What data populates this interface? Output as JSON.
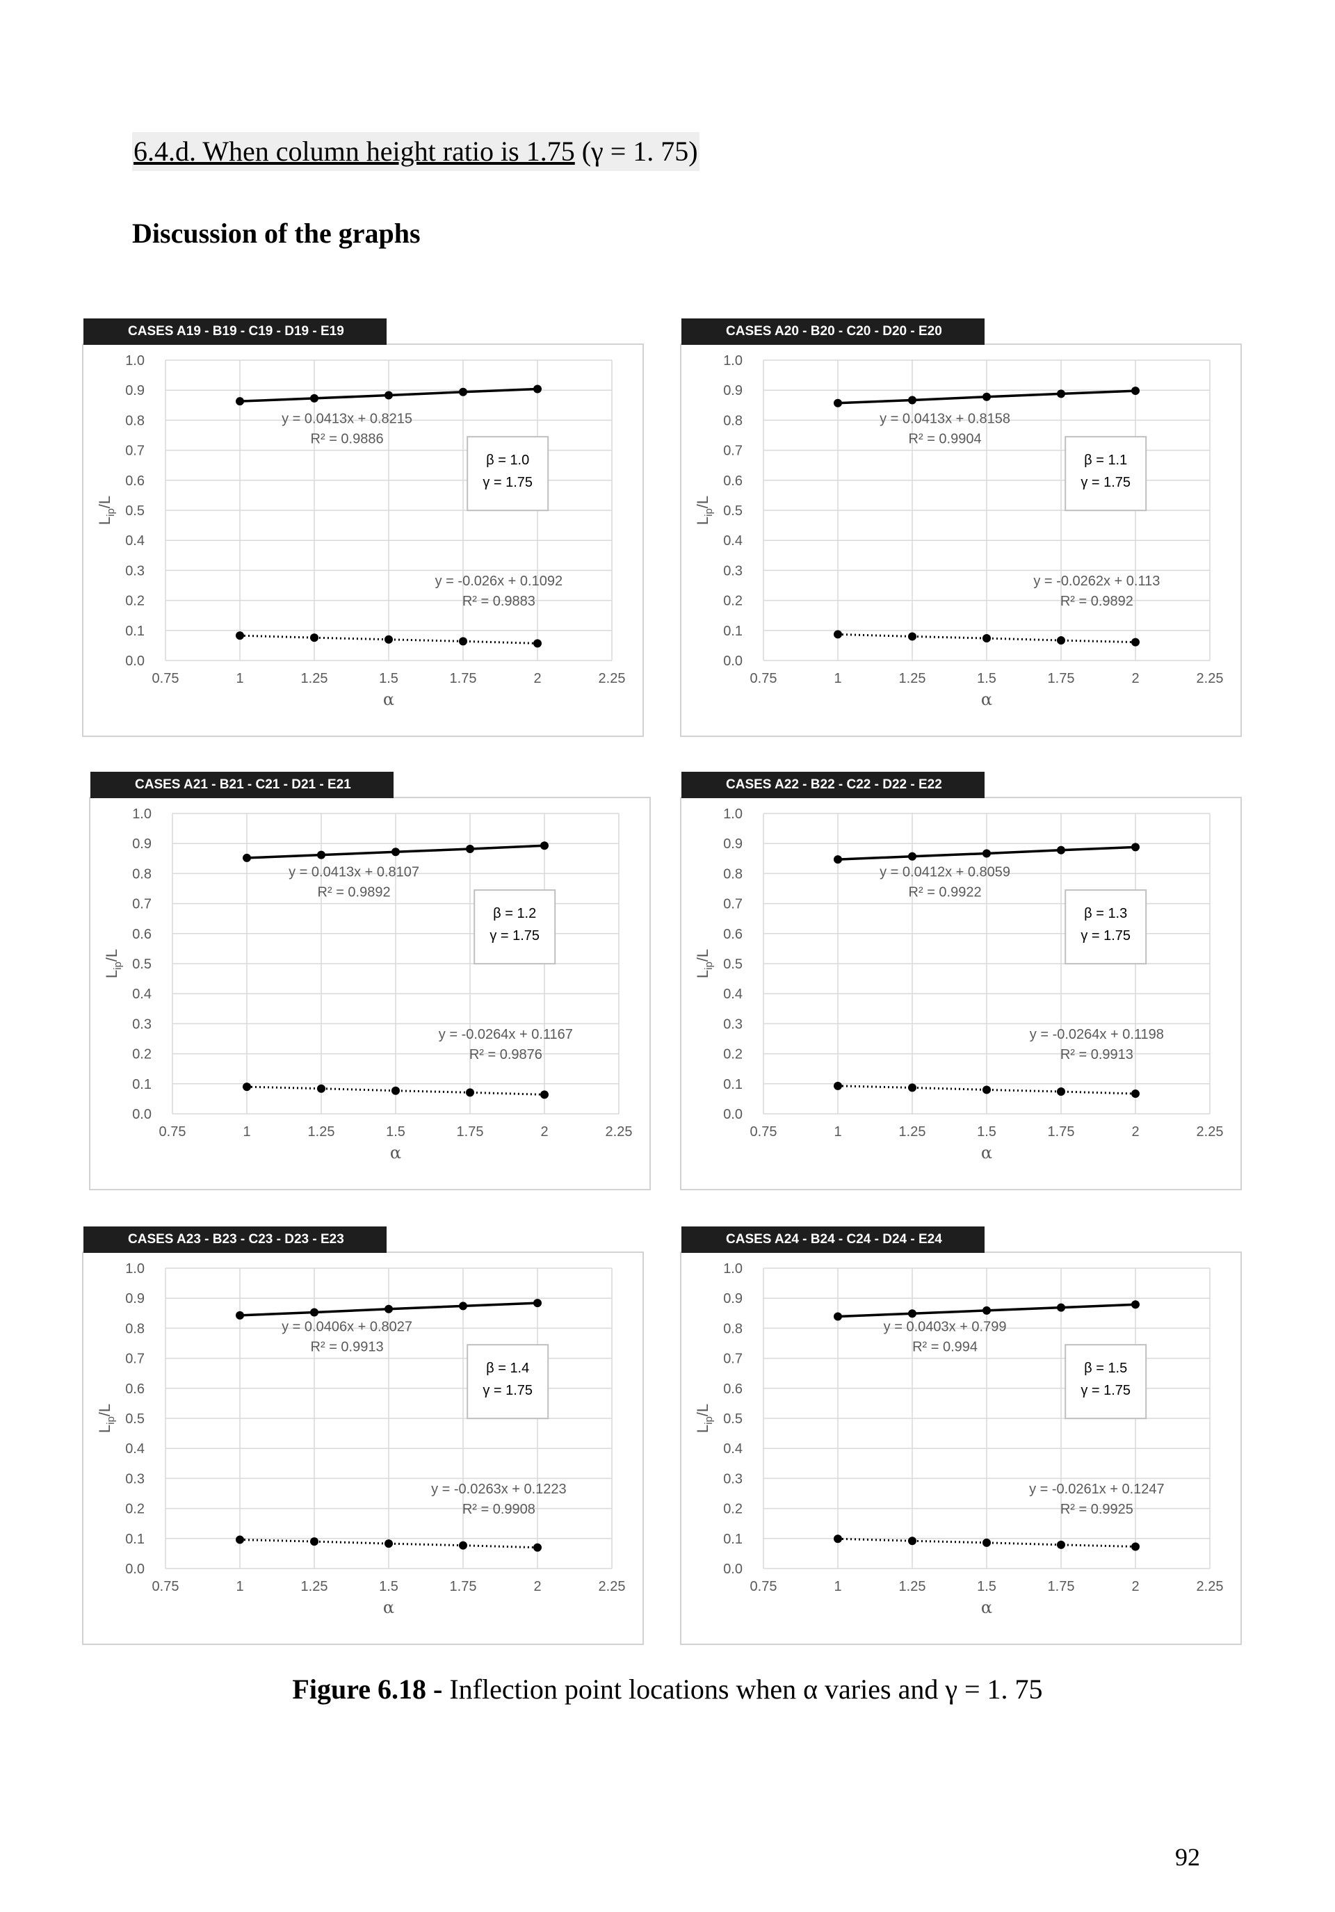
{
  "section_heading": {
    "underlined": "6.4.d. When column height ratio is 1.75",
    "math": "(γ  =  1. 75)"
  },
  "subheading": "Discussion of the graphs",
  "caption": {
    "bold": "Figure 6.18 -",
    "text": " Inflection point locations when α varies and γ  =  1. 75"
  },
  "page_number": "92",
  "colors": {
    "gridline": "#d9d9d9",
    "tick_label": "#595959",
    "series_line": "#000000",
    "header_band": "#1e1e1e"
  },
  "chart_data": [
    {
      "type": "line",
      "header": "CASES A19 - B19 - C19 - D19 - E19",
      "xlabel": "α",
      "ylabel": "Lip/L",
      "xlim": [
        0.75,
        2.25
      ],
      "ylim": [
        0,
        1.0
      ],
      "grid": true,
      "x_ticks": [
        "0.75",
        "1",
        "1.25",
        "1.5",
        "1.75",
        "2",
        "2.25"
      ],
      "y_ticks": [
        "0.0",
        "0.1",
        "0.2",
        "0.3",
        "0.4",
        "0.5",
        "0.6",
        "0.7",
        "0.8",
        "0.9",
        "1.0"
      ],
      "legend_box": [
        "β = 1.0",
        "γ = 1.75"
      ],
      "series": [
        {
          "x": [
            1,
            1.25,
            1.5,
            1.75,
            2
          ],
          "y": [
            0.863,
            0.873,
            0.883,
            0.894,
            0.904
          ],
          "style": "solid",
          "trend": [
            "y = 0.0413x + 0.8215",
            "R² = 0.9886"
          ]
        },
        {
          "x": [
            1,
            1.25,
            1.5,
            1.75,
            2
          ],
          "y": [
            0.083,
            0.076,
            0.07,
            0.064,
            0.057
          ],
          "style": "dotted",
          "trend": [
            "y = -0.026x + 0.1092",
            "R² = 0.9883"
          ]
        }
      ]
    },
    {
      "type": "line",
      "header": "CASES A20 - B20 - C20 - D20 - E20",
      "xlabel": "α",
      "ylabel": "Lip/L",
      "xlim": [
        0.75,
        2.25
      ],
      "ylim": [
        0,
        1.0
      ],
      "grid": true,
      "x_ticks": [
        "0.75",
        "1",
        "1.25",
        "1.5",
        "1.75",
        "2",
        "2.25"
      ],
      "y_ticks": [
        "0.0",
        "0.1",
        "0.2",
        "0.3",
        "0.4",
        "0.5",
        "0.6",
        "0.7",
        "0.8",
        "0.9",
        "1.0"
      ],
      "legend_box": [
        "β = 1.1",
        "γ = 1.75"
      ],
      "series": [
        {
          "x": [
            1,
            1.25,
            1.5,
            1.75,
            2
          ],
          "y": [
            0.857,
            0.867,
            0.878,
            0.888,
            0.898
          ],
          "style": "solid",
          "trend": [
            "y = 0.0413x + 0.8158",
            "R² = 0.9904"
          ]
        },
        {
          "x": [
            1,
            1.25,
            1.5,
            1.75,
            2
          ],
          "y": [
            0.087,
            0.08,
            0.074,
            0.067,
            0.061
          ],
          "style": "dotted",
          "trend": [
            "y = -0.0262x + 0.113",
            "R² = 0.9892"
          ]
        }
      ]
    },
    {
      "type": "line",
      "header": "CASES A21 - B21 - C21 - D21 - E21",
      "xlabel": "α",
      "ylabel": "Lip/L",
      "xlim": [
        0.75,
        2.25
      ],
      "ylim": [
        0,
        1.0
      ],
      "grid": true,
      "x_ticks": [
        "0.75",
        "1",
        "1.25",
        "1.5",
        "1.75",
        "2",
        "2.25"
      ],
      "y_ticks": [
        "0.0",
        "0.1",
        "0.2",
        "0.3",
        "0.4",
        "0.5",
        "0.6",
        "0.7",
        "0.8",
        "0.9",
        "1.0"
      ],
      "legend_box": [
        "β = 1.2",
        "γ = 1.75"
      ],
      "series": [
        {
          "x": [
            1,
            1.25,
            1.5,
            1.75,
            2
          ],
          "y": [
            0.852,
            0.862,
            0.872,
            0.882,
            0.893
          ],
          "style": "solid",
          "trend": [
            "y = 0.0413x + 0.8107",
            "R² = 0.9892"
          ]
        },
        {
          "x": [
            1,
            1.25,
            1.5,
            1.75,
            2
          ],
          "y": [
            0.09,
            0.084,
            0.077,
            0.071,
            0.064
          ],
          "style": "dotted",
          "trend": [
            "y = -0.0264x + 0.1167",
            "R² = 0.9876"
          ]
        }
      ]
    },
    {
      "type": "line",
      "header": "CASES A22 - B22 - C22 - D22 - E22",
      "xlabel": "α",
      "ylabel": "Lip/L",
      "xlim": [
        0.75,
        2.25
      ],
      "ylim": [
        0,
        1.0
      ],
      "grid": true,
      "x_ticks": [
        "0.75",
        "1",
        "1.25",
        "1.5",
        "1.75",
        "2",
        "2.25"
      ],
      "y_ticks": [
        "0.0",
        "0.1",
        "0.2",
        "0.3",
        "0.4",
        "0.5",
        "0.6",
        "0.7",
        "0.8",
        "0.9",
        "1.0"
      ],
      "legend_box": [
        "β = 1.3",
        "γ = 1.75"
      ],
      "series": [
        {
          "x": [
            1,
            1.25,
            1.5,
            1.75,
            2
          ],
          "y": [
            0.847,
            0.857,
            0.867,
            0.878,
            0.888
          ],
          "style": "solid",
          "trend": [
            "y = 0.0412x + 0.8059",
            "R² = 0.9922"
          ]
        },
        {
          "x": [
            1,
            1.25,
            1.5,
            1.75,
            2
          ],
          "y": [
            0.093,
            0.087,
            0.08,
            0.074,
            0.067
          ],
          "style": "dotted",
          "trend": [
            "y = -0.0264x + 0.1198",
            "R² = 0.9913"
          ]
        }
      ]
    },
    {
      "type": "line",
      "header": "CASES A23 - B23 - C23 - D23 - E23",
      "xlabel": "α",
      "ylabel": "Lip/L",
      "xlim": [
        0.75,
        2.25
      ],
      "ylim": [
        0,
        1.0
      ],
      "grid": true,
      "x_ticks": [
        "0.75",
        "1",
        "1.25",
        "1.5",
        "1.75",
        "2",
        "2.25"
      ],
      "y_ticks": [
        "0.0",
        "0.1",
        "0.2",
        "0.3",
        "0.4",
        "0.5",
        "0.6",
        "0.7",
        "0.8",
        "0.9",
        "1.0"
      ],
      "legend_box": [
        "β = 1.4",
        "γ = 1.75"
      ],
      "series": [
        {
          "x": [
            1,
            1.25,
            1.5,
            1.75,
            2
          ],
          "y": [
            0.843,
            0.853,
            0.864,
            0.874,
            0.884
          ],
          "style": "solid",
          "trend": [
            "y = 0.0406x + 0.8027",
            "R² = 0.9913"
          ]
        },
        {
          "x": [
            1,
            1.25,
            1.5,
            1.75,
            2
          ],
          "y": [
            0.096,
            0.09,
            0.083,
            0.077,
            0.07
          ],
          "style": "dotted",
          "trend": [
            "y = -0.0263x + 0.1223",
            "R² = 0.9908"
          ]
        }
      ]
    },
    {
      "type": "line",
      "header": "CASES A24 - B24 - C24 - D24 - E24",
      "xlabel": "α",
      "ylabel": "Lip/L",
      "xlim": [
        0.75,
        2.25
      ],
      "ylim": [
        0,
        1.0
      ],
      "grid": true,
      "x_ticks": [
        "0.75",
        "1",
        "1.25",
        "1.5",
        "1.75",
        "2",
        "2.25"
      ],
      "y_ticks": [
        "0.0",
        "0.1",
        "0.2",
        "0.3",
        "0.4",
        "0.5",
        "0.6",
        "0.7",
        "0.8",
        "0.9",
        "1.0"
      ],
      "legend_box": [
        "β = 1.5",
        "γ = 1.75"
      ],
      "series": [
        {
          "x": [
            1,
            1.25,
            1.5,
            1.75,
            2
          ],
          "y": [
            0.839,
            0.849,
            0.859,
            0.869,
            0.879
          ],
          "style": "solid",
          "trend": [
            "y = 0.0403x + 0.799",
            "R² = 0.994"
          ]
        },
        {
          "x": [
            1,
            1.25,
            1.5,
            1.75,
            2
          ],
          "y": [
            0.099,
            0.092,
            0.086,
            0.079,
            0.073
          ],
          "style": "dotted",
          "trend": [
            "y = -0.0261x + 0.1247",
            "R² = 0.9925"
          ]
        }
      ]
    }
  ]
}
